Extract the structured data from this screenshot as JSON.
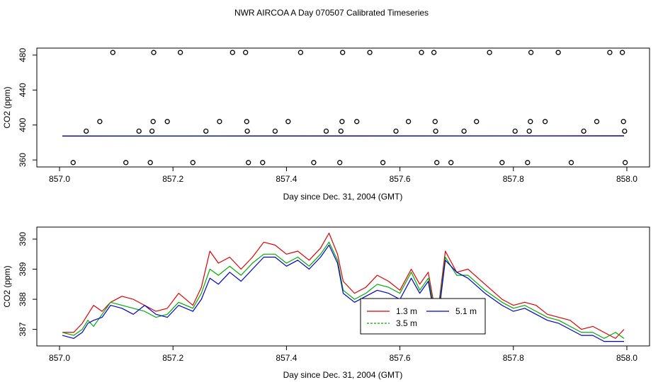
{
  "title": "NWR AIRCOA A  Day 070507  Calibrated Timeseries",
  "chart_data": [
    {
      "type": "scatter",
      "xlabel": "Day since Dec. 31, 2004 (GMT)",
      "ylabel": "CO2 (ppm)",
      "xlim": [
        856.96,
        858.04
      ],
      "ylim": [
        352,
        488
      ],
      "xticks": [
        "857.0",
        "857.2",
        "857.4",
        "857.6",
        "857.8",
        "858.0"
      ],
      "yticks": [
        "360",
        "400",
        "440",
        "480"
      ],
      "calibration_points": {
        "x": [
          857.024,
          857.047,
          857.071,
          857.094,
          857.117,
          857.14,
          857.16,
          857.163,
          857.165,
          857.166,
          857.19,
          857.213,
          857.235,
          857.258,
          857.282,
          857.305,
          857.328,
          857.33,
          857.331,
          857.333,
          857.358,
          857.38,
          857.403,
          857.425,
          857.448,
          857.47,
          857.494,
          857.496,
          857.498,
          857.499,
          857.524,
          857.547,
          857.57,
          857.593,
          857.615,
          857.638,
          857.66,
          857.662,
          857.663,
          857.665,
          857.69,
          857.713,
          857.735,
          857.758,
          857.78,
          857.803,
          857.825,
          857.828,
          857.83,
          857.831,
          857.856,
          857.879,
          857.902,
          857.924,
          857.947,
          857.97,
          857.992,
          857.994,
          857.996,
          857.997
        ],
        "y": [
          357,
          393,
          404,
          483,
          357,
          393,
          357,
          393,
          404,
          483,
          404,
          483,
          357,
          393,
          404,
          483,
          483,
          404,
          393,
          357,
          357,
          393,
          404,
          483,
          357,
          393,
          357,
          393,
          404,
          483,
          404,
          483,
          357,
          393,
          404,
          483,
          483,
          404,
          393,
          357,
          357,
          393,
          404,
          483,
          357,
          393,
          357,
          393,
          404,
          483,
          404,
          483,
          357,
          393,
          404,
          483,
          483,
          404,
          393,
          357
        ]
      },
      "series": [
        {
          "color": "#dd0000",
          "x": [
            857.005,
            857.995
          ],
          "y": [
            387.5,
            387.7
          ]
        },
        {
          "color": "#00aa00",
          "x": [
            857.005,
            857.995
          ],
          "y": [
            387.4,
            387.6
          ]
        },
        {
          "color": "#0000cc",
          "x": [
            857.005,
            857.995
          ],
          "y": [
            387.3,
            387.5
          ]
        }
      ]
    },
    {
      "type": "line",
      "xlabel": "Day since Dec. 31, 2004 (GMT)",
      "ylabel": "CO2 (ppm)",
      "xlim": [
        856.96,
        858.04
      ],
      "ylim": [
        386.45,
        390.4
      ],
      "xticks": [
        "857.0",
        "857.2",
        "857.4",
        "857.6",
        "857.8",
        "858.0"
      ],
      "yticks": [
        "387",
        "388",
        "389",
        "390"
      ],
      "legend_position": "bottom-center",
      "series": [
        {
          "name": "1.3 m",
          "color": "#dd0000",
          "x": [
            857.005,
            857.025,
            857.04,
            857.05,
            857.06,
            857.075,
            857.09,
            857.11,
            857.13,
            857.15,
            857.17,
            857.19,
            857.21,
            857.235,
            857.25,
            857.265,
            857.28,
            857.3,
            857.32,
            857.34,
            857.36,
            857.38,
            857.4,
            857.42,
            857.44,
            857.46,
            857.475,
            857.49,
            857.5,
            857.52,
            857.54,
            857.56,
            857.58,
            857.6,
            857.62,
            857.635,
            857.65,
            857.665,
            857.68,
            857.7,
            857.72,
            857.75,
            857.78,
            857.8,
            857.82,
            857.84,
            857.86,
            857.88,
            857.9,
            857.92,
            857.94,
            857.96,
            857.98,
            857.995
          ],
          "y": [
            386.9,
            386.9,
            387.2,
            387.5,
            387.8,
            387.6,
            387.9,
            388.1,
            388.0,
            387.8,
            387.6,
            387.7,
            388.2,
            387.8,
            388.4,
            389.6,
            389.2,
            389.4,
            389.0,
            389.4,
            389.9,
            389.8,
            389.5,
            389.6,
            389.3,
            389.7,
            390.2,
            389.5,
            388.6,
            388.2,
            388.4,
            388.8,
            388.6,
            388.3,
            389.0,
            388.5,
            388.9,
            387.3,
            389.6,
            388.9,
            389.0,
            388.5,
            388.0,
            387.8,
            387.9,
            387.8,
            387.5,
            387.4,
            387.3,
            387.0,
            387.1,
            386.9,
            386.7,
            387.0
          ]
        },
        {
          "name": "3.5 m",
          "color": "#00aa00",
          "x": [
            857.005,
            857.025,
            857.04,
            857.05,
            857.06,
            857.075,
            857.09,
            857.11,
            857.13,
            857.15,
            857.17,
            857.19,
            857.21,
            857.235,
            857.25,
            857.265,
            857.28,
            857.3,
            857.32,
            857.34,
            857.36,
            857.38,
            857.4,
            857.42,
            857.44,
            857.46,
            857.475,
            857.49,
            857.5,
            857.52,
            857.54,
            857.56,
            857.58,
            857.6,
            857.62,
            857.635,
            857.65,
            857.665,
            857.68,
            857.7,
            857.72,
            857.75,
            857.78,
            857.8,
            857.82,
            857.84,
            857.86,
            857.88,
            857.9,
            857.92,
            857.94,
            857.96,
            857.98,
            857.995
          ],
          "y": [
            386.9,
            386.8,
            387.0,
            387.3,
            387.1,
            387.5,
            387.9,
            387.8,
            387.7,
            387.6,
            387.4,
            387.5,
            387.9,
            387.7,
            388.2,
            389.0,
            388.8,
            389.1,
            388.8,
            389.2,
            389.5,
            389.5,
            389.2,
            389.4,
            389.1,
            389.5,
            389.9,
            389.3,
            388.3,
            388.0,
            388.2,
            388.5,
            388.4,
            388.2,
            388.9,
            388.3,
            388.7,
            387.2,
            389.4,
            388.8,
            388.8,
            388.3,
            387.9,
            387.7,
            387.8,
            387.6,
            387.4,
            387.3,
            387.1,
            386.9,
            386.9,
            386.7,
            386.9,
            386.7
          ]
        },
        {
          "name": "5.1 m",
          "color": "#0000cc",
          "x": [
            857.005,
            857.025,
            857.04,
            857.05,
            857.06,
            857.075,
            857.09,
            857.11,
            857.13,
            857.15,
            857.17,
            857.19,
            857.21,
            857.235,
            857.25,
            857.265,
            857.28,
            857.3,
            857.32,
            857.34,
            857.36,
            857.38,
            857.4,
            857.42,
            857.44,
            857.46,
            857.475,
            857.49,
            857.5,
            857.52,
            857.54,
            857.56,
            857.58,
            857.6,
            857.62,
            857.635,
            857.65,
            857.665,
            857.68,
            857.7,
            857.72,
            857.75,
            857.78,
            857.8,
            857.82,
            857.84,
            857.86,
            857.88,
            857.9,
            857.92,
            857.94,
            857.96,
            857.98,
            857.995
          ],
          "y": [
            386.8,
            386.7,
            386.9,
            387.2,
            387.3,
            387.4,
            387.8,
            387.7,
            387.5,
            387.8,
            387.5,
            387.4,
            387.8,
            387.6,
            388.0,
            388.7,
            388.5,
            388.9,
            388.6,
            389.0,
            389.4,
            389.4,
            389.1,
            389.3,
            389.0,
            389.4,
            389.8,
            389.2,
            388.2,
            387.9,
            388.1,
            388.3,
            388.2,
            388.0,
            388.7,
            388.2,
            388.6,
            387.0,
            389.3,
            388.9,
            388.7,
            388.2,
            387.8,
            387.6,
            387.7,
            387.5,
            387.3,
            387.2,
            387.0,
            386.8,
            386.8,
            386.6,
            386.6,
            386.6
          ]
        }
      ]
    }
  ]
}
